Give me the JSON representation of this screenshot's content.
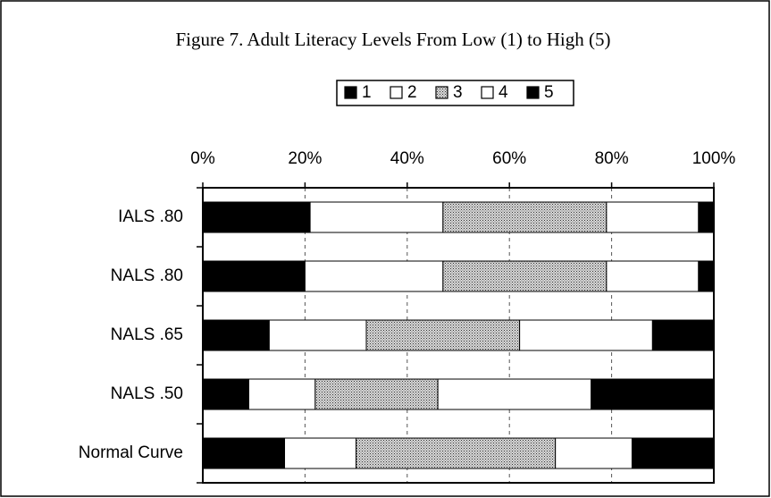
{
  "chart_data": {
    "type": "stacked_barh",
    "title": "Figure 7. Adult Literacy Levels From Low (1) to High (5)",
    "categories": [
      "IALS .80",
      "NALS .80",
      "NALS .65",
      "NALS .50",
      "Normal Curve"
    ],
    "series": [
      {
        "name": "1",
        "color": "#000000",
        "values": [
          21,
          20,
          13,
          9,
          16
        ]
      },
      {
        "name": "2",
        "color": "#ffffff",
        "values": [
          26,
          27,
          19,
          13,
          14
        ]
      },
      {
        "name": "3",
        "color": "#b0b0b0",
        "pattern": "dotted",
        "values": [
          32,
          32,
          30,
          24,
          39
        ]
      },
      {
        "name": "4",
        "color": "#ffffff",
        "values": [
          18,
          18,
          26,
          30,
          15
        ]
      },
      {
        "name": "5",
        "color": "#000000",
        "values": [
          3,
          3,
          12,
          24,
          16
        ]
      }
    ],
    "xlim": [
      0,
      100
    ],
    "xticks": [
      {
        "value": 0,
        "label": "0%"
      },
      {
        "value": 20,
        "label": "20%"
      },
      {
        "value": 40,
        "label": "40%"
      },
      {
        "value": 60,
        "label": "60%"
      },
      {
        "value": 80,
        "label": "80%"
      },
      {
        "value": 100,
        "label": "100%"
      }
    ],
    "grid": true
  }
}
